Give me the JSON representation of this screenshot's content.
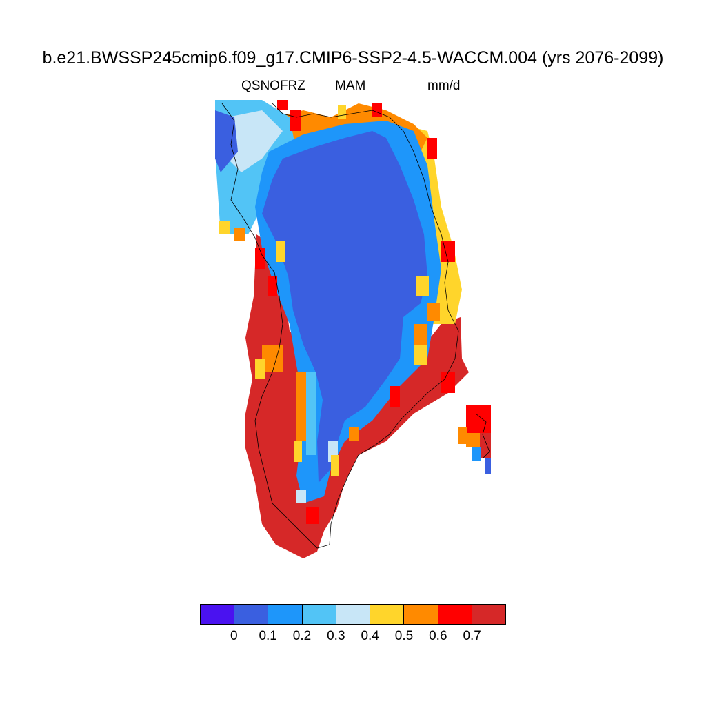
{
  "title": "b.e21.BWSSP245cmip6.f09_g17.CMIP6-SSP2-4.5-WACCM.004 (yrs 2076-2099)",
  "subtitle": {
    "variable": "QSNOFRZ",
    "season": "MAM",
    "units": "mm/d"
  },
  "colorbar": {
    "colors": [
      "#4a12f0",
      "#3a5fe0",
      "#1e96fa",
      "#52c4f6",
      "#c8e6f7",
      "#ffd52b",
      "#ff8a00",
      "#ff0000",
      "#d62828"
    ],
    "labels": [
      "0",
      "0.1",
      "0.2",
      "0.3",
      "0.4",
      "0.5",
      "0.6",
      "0.7"
    ]
  },
  "map": {
    "region": "Greenland",
    "field": "QSNOFRZ",
    "interior_value_class": "0–0.1",
    "southern_margin_value_class": ">0.7"
  }
}
